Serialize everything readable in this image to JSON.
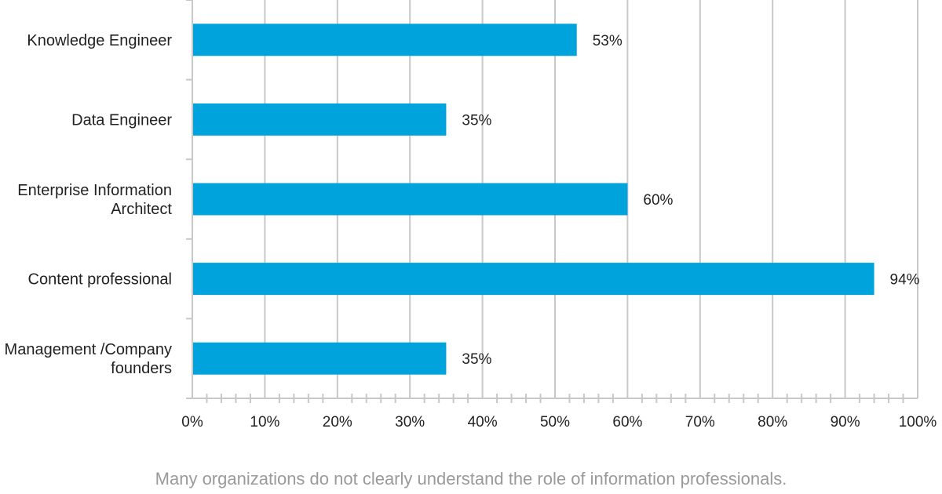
{
  "chart_data": {
    "type": "bar",
    "orientation": "horizontal",
    "categories": [
      [
        "Knowledge Engineer"
      ],
      [
        "Data Engineer"
      ],
      [
        "Enterprise Information",
        "Architect"
      ],
      [
        "Content professional"
      ],
      [
        "Management /Company",
        "founders"
      ]
    ],
    "values": [
      53,
      35,
      60,
      94,
      35
    ],
    "data_labels": [
      "53%",
      "35%",
      "60%",
      "94%",
      "35%"
    ],
    "xlim": [
      0,
      100
    ],
    "x_ticks": [
      0,
      10,
      20,
      30,
      40,
      50,
      60,
      70,
      80,
      90,
      100
    ],
    "x_tick_labels": [
      "0%",
      "10%",
      "20%",
      "30%",
      "40%",
      "50%",
      "60%",
      "70%",
      "80%",
      "90%",
      "100%"
    ],
    "grid": true,
    "bar_color": "#00a3dc",
    "title": "",
    "xlabel": "",
    "ylabel": ""
  },
  "caption": "Many organizations do not clearly understand the role of information professionals."
}
